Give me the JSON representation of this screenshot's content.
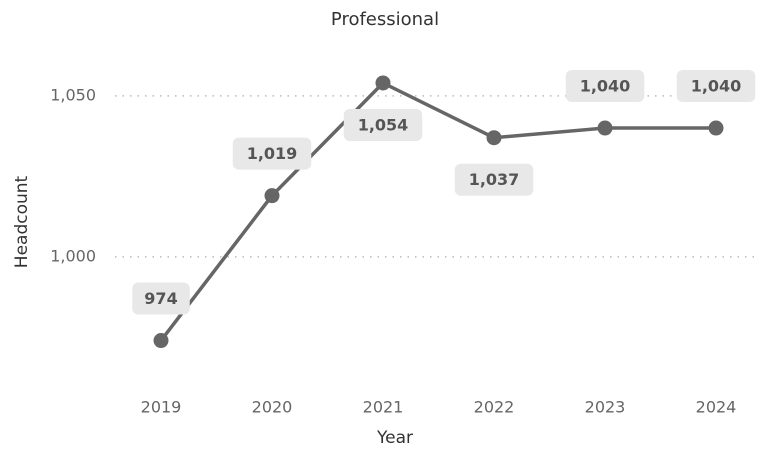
{
  "chart_data": {
    "type": "line",
    "title": "Professional",
    "x_label": "Year",
    "y_label": "Headcount",
    "categories": [
      "2019",
      "2020",
      "2021",
      "2022",
      "2023",
      "2024"
    ],
    "series": [
      {
        "name": "Headcount",
        "color": "#666666",
        "values": [
          974,
          1019,
          1054,
          1037,
          1040,
          1040
        ],
        "value_labels": [
          "974",
          "1,019",
          "1,054",
          "1,037",
          "1,040",
          "1,040"
        ]
      }
    ],
    "ylim": [
      965,
      1063
    ],
    "yticks": [
      {
        "value": 1000,
        "label": "1,000"
      },
      {
        "value": 1050,
        "label": "1,050"
      }
    ],
    "grid": true
  }
}
